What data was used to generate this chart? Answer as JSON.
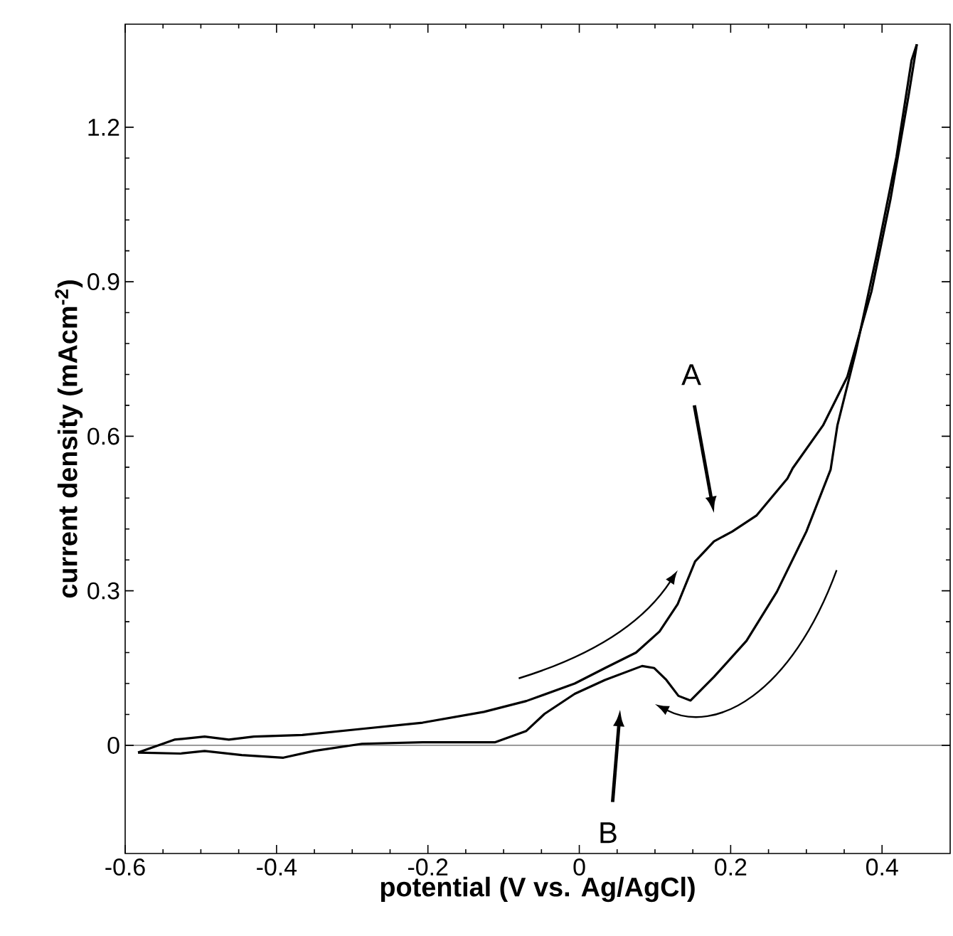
{
  "chart_data": {
    "type": "line",
    "xlabel": "potential (V vs. Ag/AgCl)",
    "ylabel": "current density (mAcm$^{-2}$)",
    "xlim": [
      -0.6,
      0.49
    ],
    "ylim": [
      -0.21,
      1.4
    ],
    "xticks": [
      -0.6,
      -0.4,
      -0.2,
      0,
      0.2,
      0.4
    ],
    "yticks": [
      0,
      0.3,
      0.6,
      0.9,
      1.2
    ],
    "grid": false,
    "series": [
      {
        "color": "#000000",
        "x": [
          -0.583,
          -0.535,
          -0.495,
          -0.463,
          -0.43,
          -0.366,
          -0.287,
          -0.207,
          -0.126,
          -0.07,
          -0.006,
          0.034,
          0.075,
          0.106,
          0.13,
          0.153,
          0.178,
          0.202,
          0.234,
          0.275,
          0.282,
          0.322,
          0.354,
          0.386,
          0.411,
          0.435,
          0.446
        ],
        "values": [
          -0.014,
          0.011,
          0.017,
          0.011,
          0.017,
          0.02,
          0.032,
          0.044,
          0.065,
          0.086,
          0.12,
          0.15,
          0.18,
          0.221,
          0.274,
          0.357,
          0.396,
          0.415,
          0.446,
          0.518,
          0.538,
          0.621,
          0.715,
          0.881,
          1.059,
          1.261,
          1.361
        ]
      },
      {
        "color": "#000000",
        "x": [
          0.446,
          0.439,
          0.419,
          0.393,
          0.365,
          0.341,
          0.332,
          0.3,
          0.261,
          0.221,
          0.178,
          0.147,
          0.131,
          0.115,
          0.099,
          0.083,
          0.034,
          -0.006,
          -0.046,
          -0.07,
          -0.111,
          -0.207,
          -0.287,
          -0.351,
          -0.391,
          -0.446,
          -0.495,
          -0.527,
          -0.583
        ],
        "values": [
          1.361,
          1.33,
          1.142,
          0.952,
          0.762,
          0.621,
          0.535,
          0.415,
          0.298,
          0.203,
          0.133,
          0.087,
          0.096,
          0.127,
          0.15,
          0.154,
          0.127,
          0.1,
          0.061,
          0.028,
          0.006,
          0.006,
          0.003,
          -0.011,
          -0.024,
          -0.019,
          -0.011,
          -0.016,
          -0.014
        ]
      }
    ],
    "ref_lines": [
      {
        "axis": "y",
        "value": 0
      }
    ],
    "annotations": [
      "A",
      "B"
    ]
  }
}
